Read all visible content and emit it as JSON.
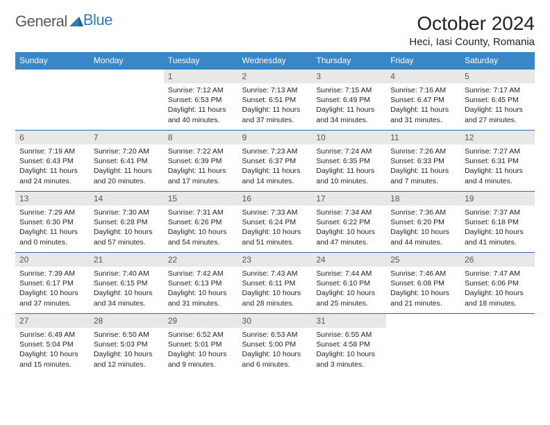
{
  "logo": {
    "text_gray": "General",
    "text_blue": "Blue"
  },
  "title": "October 2024",
  "location": "Heci, Iasi County, Romania",
  "colors": {
    "header_bg": "#3a87c8",
    "header_text": "#ffffff",
    "daynum_bg": "#e8e8e8",
    "daynum_text": "#555555",
    "body_text": "#222222",
    "row_border": "#2e6da4",
    "logo_gray": "#5a5a5a",
    "logo_blue": "#2e78bd"
  },
  "weekdays": [
    "Sunday",
    "Monday",
    "Tuesday",
    "Wednesday",
    "Thursday",
    "Friday",
    "Saturday"
  ],
  "weeks": [
    [
      null,
      null,
      {
        "n": "1",
        "sr": "7:12 AM",
        "ss": "6:53 PM",
        "dl": "11 hours and 40 minutes."
      },
      {
        "n": "2",
        "sr": "7:13 AM",
        "ss": "6:51 PM",
        "dl": "11 hours and 37 minutes."
      },
      {
        "n": "3",
        "sr": "7:15 AM",
        "ss": "6:49 PM",
        "dl": "11 hours and 34 minutes."
      },
      {
        "n": "4",
        "sr": "7:16 AM",
        "ss": "6:47 PM",
        "dl": "11 hours and 31 minutes."
      },
      {
        "n": "5",
        "sr": "7:17 AM",
        "ss": "6:45 PM",
        "dl": "11 hours and 27 minutes."
      }
    ],
    [
      {
        "n": "6",
        "sr": "7:19 AM",
        "ss": "6:43 PM",
        "dl": "11 hours and 24 minutes."
      },
      {
        "n": "7",
        "sr": "7:20 AM",
        "ss": "6:41 PM",
        "dl": "11 hours and 20 minutes."
      },
      {
        "n": "8",
        "sr": "7:22 AM",
        "ss": "6:39 PM",
        "dl": "11 hours and 17 minutes."
      },
      {
        "n": "9",
        "sr": "7:23 AM",
        "ss": "6:37 PM",
        "dl": "11 hours and 14 minutes."
      },
      {
        "n": "10",
        "sr": "7:24 AM",
        "ss": "6:35 PM",
        "dl": "11 hours and 10 minutes."
      },
      {
        "n": "11",
        "sr": "7:26 AM",
        "ss": "6:33 PM",
        "dl": "11 hours and 7 minutes."
      },
      {
        "n": "12",
        "sr": "7:27 AM",
        "ss": "6:31 PM",
        "dl": "11 hours and 4 minutes."
      }
    ],
    [
      {
        "n": "13",
        "sr": "7:29 AM",
        "ss": "6:30 PM",
        "dl": "11 hours and 0 minutes."
      },
      {
        "n": "14",
        "sr": "7:30 AM",
        "ss": "6:28 PM",
        "dl": "10 hours and 57 minutes."
      },
      {
        "n": "15",
        "sr": "7:31 AM",
        "ss": "6:26 PM",
        "dl": "10 hours and 54 minutes."
      },
      {
        "n": "16",
        "sr": "7:33 AM",
        "ss": "6:24 PM",
        "dl": "10 hours and 51 minutes."
      },
      {
        "n": "17",
        "sr": "7:34 AM",
        "ss": "6:22 PM",
        "dl": "10 hours and 47 minutes."
      },
      {
        "n": "18",
        "sr": "7:36 AM",
        "ss": "6:20 PM",
        "dl": "10 hours and 44 minutes."
      },
      {
        "n": "19",
        "sr": "7:37 AM",
        "ss": "6:18 PM",
        "dl": "10 hours and 41 minutes."
      }
    ],
    [
      {
        "n": "20",
        "sr": "7:39 AM",
        "ss": "6:17 PM",
        "dl": "10 hours and 37 minutes."
      },
      {
        "n": "21",
        "sr": "7:40 AM",
        "ss": "6:15 PM",
        "dl": "10 hours and 34 minutes."
      },
      {
        "n": "22",
        "sr": "7:42 AM",
        "ss": "6:13 PM",
        "dl": "10 hours and 31 minutes."
      },
      {
        "n": "23",
        "sr": "7:43 AM",
        "ss": "6:11 PM",
        "dl": "10 hours and 28 minutes."
      },
      {
        "n": "24",
        "sr": "7:44 AM",
        "ss": "6:10 PM",
        "dl": "10 hours and 25 minutes."
      },
      {
        "n": "25",
        "sr": "7:46 AM",
        "ss": "6:08 PM",
        "dl": "10 hours and 21 minutes."
      },
      {
        "n": "26",
        "sr": "7:47 AM",
        "ss": "6:06 PM",
        "dl": "10 hours and 18 minutes."
      }
    ],
    [
      {
        "n": "27",
        "sr": "6:49 AM",
        "ss": "5:04 PM",
        "dl": "10 hours and 15 minutes."
      },
      {
        "n": "28",
        "sr": "6:50 AM",
        "ss": "5:03 PM",
        "dl": "10 hours and 12 minutes."
      },
      {
        "n": "29",
        "sr": "6:52 AM",
        "ss": "5:01 PM",
        "dl": "10 hours and 9 minutes."
      },
      {
        "n": "30",
        "sr": "6:53 AM",
        "ss": "5:00 PM",
        "dl": "10 hours and 6 minutes."
      },
      {
        "n": "31",
        "sr": "6:55 AM",
        "ss": "4:58 PM",
        "dl": "10 hours and 3 minutes."
      },
      null,
      null
    ]
  ],
  "labels": {
    "sunrise": "Sunrise:",
    "sunset": "Sunset:",
    "daylight": "Daylight:"
  }
}
